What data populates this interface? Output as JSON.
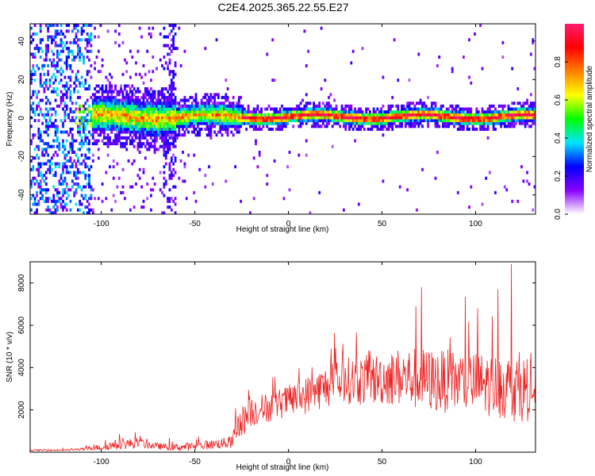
{
  "figure": {
    "title": "C2E4.2025.365.22.55.E27"
  },
  "chart_data": [
    {
      "type": "heatmap",
      "title": "C2E4.2025.365.22.55.E27",
      "xlabel": "Height of straight line (km)",
      "ylabel": "Frequency (Hz)",
      "xlim": [
        -138,
        132
      ],
      "ylim": [
        -50,
        49
      ],
      "xticks": [
        -100,
        -50,
        0,
        50,
        100
      ],
      "yticks": [
        -40,
        -20,
        0,
        20,
        40
      ],
      "description_values": {
        "carrier_frequency_hz": 0,
        "noise_region_x_max_km": -105,
        "strong_carrier_x_start_km": -25
      },
      "colorbar": {
        "label": "Normalized spectral amplitude",
        "range": [
          0.0,
          1.0
        ],
        "ticks": [
          0.0,
          0.2,
          0.4,
          0.6,
          0.8
        ],
        "tick_labels": [
          "0.0",
          "0.2",
          "0.4",
          "0.6",
          "0.8"
        ],
        "colors": [
          "#ffffff",
          "#8a00ff",
          "#0000ff",
          "#00e5ff",
          "#00ff00",
          "#ffff00",
          "#ff8000",
          "#ff0000",
          "#ff1a6e"
        ]
      }
    },
    {
      "type": "line",
      "xlabel": "Height of straight line (km)",
      "ylabel": "SNR (10 * v/v)",
      "xlim": [
        -138,
        132
      ],
      "ylim": [
        0,
        9000
      ],
      "xticks": [
        -100,
        -50,
        0,
        50,
        100
      ],
      "yticks": [
        2000,
        4000,
        6000,
        8000
      ],
      "color": "#ee2222",
      "envelope": {
        "x": [
          -138,
          -120,
          -110,
          -100,
          -90,
          -80,
          -70,
          -60,
          -50,
          -40,
          -30,
          -28,
          -25,
          -20,
          -10,
          0,
          10,
          20,
          30,
          40,
          50,
          60,
          70,
          80,
          90,
          100,
          110,
          120,
          132
        ],
        "baseline": [
          100,
          100,
          150,
          250,
          400,
          450,
          300,
          250,
          300,
          400,
          500,
          1200,
          1500,
          2000,
          2200,
          2500,
          2800,
          3200,
          3500,
          3500,
          3600,
          3700,
          3600,
          3500,
          3500,
          3400,
          3300,
          3200,
          3100
        ],
        "spread": [
          80,
          80,
          120,
          300,
          500,
          500,
          300,
          350,
          400,
          450,
          600,
          1500,
          1500,
          1500,
          1400,
          1500,
          1800,
          2000,
          2200,
          2400,
          2500,
          2800,
          3000,
          3000,
          3000,
          3000,
          3000,
          3200,
          3000
        ]
      },
      "peaks": [
        {
          "x": 68,
          "y": 6900
        },
        {
          "x": 71,
          "y": 7800
        },
        {
          "x": 112,
          "y": 7700
        },
        {
          "x": 119,
          "y": 8900
        },
        {
          "x": 101,
          "y": 6800
        }
      ]
    }
  ]
}
